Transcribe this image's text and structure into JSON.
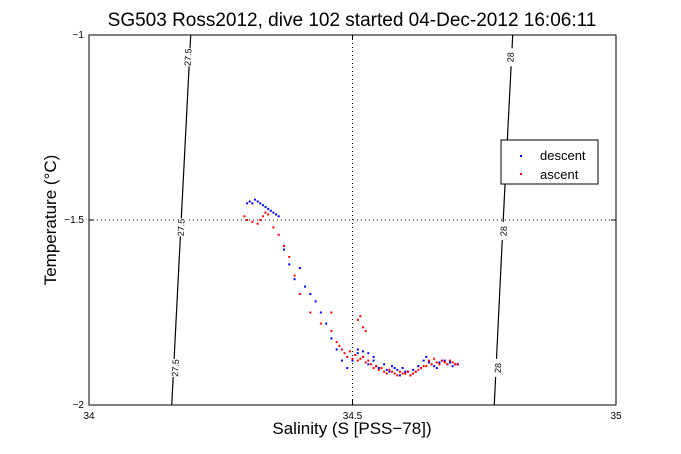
{
  "chart_data": {
    "type": "scatter",
    "title": "SG503 Ross2012, dive 102 started 04-Dec-2012 16:06:11",
    "xlabel": "Salinity (S [PSS−78])",
    "ylabel": "Temperature (°C)",
    "xlim": [
      34,
      35
    ],
    "ylim": [
      -2,
      -1
    ],
    "xticks": [
      34,
      34.5,
      35
    ],
    "yticks": [
      -2,
      -1.5,
      -1
    ],
    "xtick_labels": [
      "34",
      "34.5",
      "35"
    ],
    "ytick_labels": [
      "−2",
      "−1.5",
      "−1"
    ],
    "grid": true,
    "legend_position": "right",
    "density_contours": [
      {
        "label": "27.5",
        "points": [
          [
            34.157,
            -2.0
          ],
          [
            34.175,
            -1.5
          ],
          [
            34.193,
            -1.0
          ]
        ],
        "label_positions": [
          [
            34.164,
            -1.9
          ],
          [
            34.175,
            -1.52
          ],
          [
            34.188,
            -1.06
          ]
        ]
      },
      {
        "label": "28",
        "points": [
          [
            34.769,
            -2.0
          ],
          [
            34.786,
            -1.5
          ],
          [
            34.804,
            -1.0
          ]
        ],
        "label_positions": [
          [
            34.776,
            -1.9
          ],
          [
            34.787,
            -1.53
          ],
          [
            34.8,
            -1.06
          ]
        ]
      }
    ],
    "series": [
      {
        "name": "descent",
        "color": "#0000ff",
        "points": [
          [
            34.3,
            -1.455
          ],
          [
            34.305,
            -1.45
          ],
          [
            34.31,
            -1.455
          ],
          [
            34.315,
            -1.445
          ],
          [
            34.32,
            -1.45
          ],
          [
            34.325,
            -1.455
          ],
          [
            34.33,
            -1.46
          ],
          [
            34.335,
            -1.465
          ],
          [
            34.34,
            -1.47
          ],
          [
            34.345,
            -1.475
          ],
          [
            34.35,
            -1.48
          ],
          [
            34.355,
            -1.485
          ],
          [
            34.36,
            -1.49
          ],
          [
            34.37,
            -1.58
          ],
          [
            34.38,
            -1.62
          ],
          [
            34.39,
            -1.66
          ],
          [
            34.4,
            -1.63
          ],
          [
            34.41,
            -1.68
          ],
          [
            34.42,
            -1.7
          ],
          [
            34.43,
            -1.72
          ],
          [
            34.44,
            -1.75
          ],
          [
            34.45,
            -1.78
          ],
          [
            34.46,
            -1.82
          ],
          [
            34.47,
            -1.85
          ],
          [
            34.48,
            -1.88
          ],
          [
            34.49,
            -1.9
          ],
          [
            34.5,
            -1.88
          ],
          [
            34.51,
            -1.86
          ],
          [
            34.52,
            -1.87
          ],
          [
            34.53,
            -1.89
          ],
          [
            34.54,
            -1.88
          ],
          [
            34.55,
            -1.9
          ],
          [
            34.56,
            -1.89
          ],
          [
            34.57,
            -1.91
          ],
          [
            34.58,
            -1.9
          ],
          [
            34.59,
            -1.92
          ],
          [
            34.6,
            -1.91
          ],
          [
            34.61,
            -1.92
          ],
          [
            34.62,
            -1.91
          ],
          [
            34.63,
            -1.9
          ],
          [
            34.64,
            -1.87
          ],
          [
            34.65,
            -1.89
          ],
          [
            34.66,
            -1.9
          ],
          [
            34.67,
            -1.88
          ],
          [
            34.68,
            -1.89
          ],
          [
            34.69,
            -1.895
          ],
          [
            34.7,
            -1.89
          ],
          [
            34.545,
            -1.895
          ],
          [
            34.555,
            -1.9
          ],
          [
            34.565,
            -1.905
          ],
          [
            34.575,
            -1.895
          ],
          [
            34.585,
            -1.905
          ],
          [
            34.595,
            -1.9
          ],
          [
            34.605,
            -1.91
          ],
          [
            34.615,
            -1.905
          ],
          [
            34.625,
            -1.895
          ],
          [
            34.635,
            -1.88
          ],
          [
            34.645,
            -1.885
          ],
          [
            34.655,
            -1.895
          ],
          [
            34.665,
            -1.885
          ],
          [
            34.675,
            -1.88
          ],
          [
            34.685,
            -1.885
          ],
          [
            34.695,
            -1.89
          ],
          [
            34.51,
            -1.85
          ],
          [
            34.52,
            -1.855
          ],
          [
            34.53,
            -1.86
          ],
          [
            34.54,
            -1.87
          ]
        ]
      },
      {
        "name": "ascent",
        "color": "#ff0000",
        "points": [
          [
            34.295,
            -1.49
          ],
          [
            34.3,
            -1.5
          ],
          [
            34.31,
            -1.505
          ],
          [
            34.32,
            -1.51
          ],
          [
            34.325,
            -1.5
          ],
          [
            34.33,
            -1.49
          ],
          [
            34.335,
            -1.48
          ],
          [
            34.34,
            -1.485
          ],
          [
            34.35,
            -1.52
          ],
          [
            34.36,
            -1.54
          ],
          [
            34.37,
            -1.57
          ],
          [
            34.38,
            -1.6
          ],
          [
            34.39,
            -1.65
          ],
          [
            34.4,
            -1.7
          ],
          [
            34.42,
            -1.75
          ],
          [
            34.44,
            -1.78
          ],
          [
            34.46,
            -1.8
          ],
          [
            34.47,
            -1.83
          ],
          [
            34.48,
            -1.85
          ],
          [
            34.49,
            -1.87
          ],
          [
            34.5,
            -1.875
          ],
          [
            34.51,
            -1.88
          ],
          [
            34.52,
            -1.87
          ],
          [
            34.53,
            -1.88
          ],
          [
            34.54,
            -1.9
          ],
          [
            34.55,
            -1.905
          ],
          [
            34.56,
            -1.91
          ],
          [
            34.57,
            -1.905
          ],
          [
            34.58,
            -1.915
          ],
          [
            34.59,
            -1.91
          ],
          [
            34.6,
            -1.915
          ],
          [
            34.61,
            -1.92
          ],
          [
            34.62,
            -1.91
          ],
          [
            34.63,
            -1.9
          ],
          [
            34.64,
            -1.895
          ],
          [
            34.65,
            -1.89
          ],
          [
            34.66,
            -1.885
          ],
          [
            34.67,
            -1.88
          ],
          [
            34.68,
            -1.89
          ],
          [
            34.69,
            -1.885
          ],
          [
            34.7,
            -1.89
          ],
          [
            34.505,
            -1.865
          ],
          [
            34.515,
            -1.875
          ],
          [
            34.525,
            -1.885
          ],
          [
            34.535,
            -1.89
          ],
          [
            34.545,
            -1.895
          ],
          [
            34.555,
            -1.9
          ],
          [
            34.565,
            -1.915
          ],
          [
            34.575,
            -1.91
          ],
          [
            34.585,
            -1.92
          ],
          [
            34.595,
            -1.915
          ],
          [
            34.605,
            -1.91
          ],
          [
            34.615,
            -1.915
          ],
          [
            34.625,
            -1.905
          ],
          [
            34.635,
            -1.895
          ],
          [
            34.645,
            -1.88
          ],
          [
            34.655,
            -1.875
          ],
          [
            34.665,
            -1.89
          ],
          [
            34.675,
            -1.885
          ],
          [
            34.685,
            -1.88
          ],
          [
            34.695,
            -1.89
          ],
          [
            34.475,
            -1.84
          ],
          [
            34.485,
            -1.86
          ],
          [
            34.495,
            -1.855
          ],
          [
            34.51,
            -1.77
          ],
          [
            34.52,
            -1.79
          ],
          [
            34.515,
            -1.76
          ],
          [
            34.525,
            -1.8
          ],
          [
            34.46,
            -1.75
          ]
        ]
      }
    ]
  }
}
